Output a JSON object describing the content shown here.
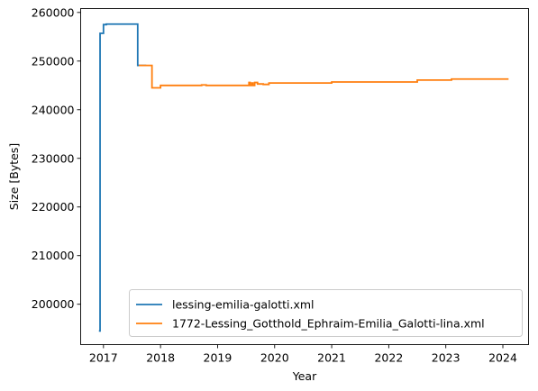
{
  "chart_data": {
    "type": "line",
    "title": "",
    "xlabel": "Year",
    "ylabel": "Size [Bytes]",
    "xlim": [
      2016.6,
      2024.45
    ],
    "ylim": [
      191700,
      260800
    ],
    "x_ticks": [
      2017,
      2018,
      2019,
      2020,
      2021,
      2022,
      2023,
      2024
    ],
    "y_ticks": [
      200000,
      210000,
      220000,
      230000,
      240000,
      250000,
      260000
    ],
    "grid": false,
    "legend_position": "lower-right",
    "series": [
      {
        "name": "lessing-emilia-galotti.xml",
        "color": "#1f77b4",
        "step": true,
        "x": [
          2016.92,
          2016.94,
          2016.96,
          2017.0,
          2017.05,
          2017.54,
          2017.6,
          2017.75
        ],
        "y": [
          194500,
          255700,
          255700,
          257500,
          257600,
          257600,
          249100,
          249100
        ]
      },
      {
        "name": "1772-Lessing_Gotthold_Ephraim-Emilia_Galotti-lina.xml",
        "color": "#ff7f0e",
        "step": true,
        "x": [
          2017.62,
          2017.85,
          2017.95,
          2018.0,
          2018.72,
          2018.8,
          2019.55,
          2019.57,
          2019.6,
          2019.62,
          2019.65,
          2019.7,
          2019.8,
          2019.9,
          2020.0,
          2021.0,
          2021.05,
          2022.0,
          2022.5,
          2022.55,
          2023.1,
          2023.2,
          2024.0,
          2024.1
        ],
        "y": [
          249100,
          244500,
          244500,
          245000,
          245100,
          245000,
          245600,
          245000,
          245500,
          245000,
          245600,
          245300,
          245200,
          245500,
          245500,
          245700,
          245700,
          245700,
          246100,
          246100,
          246300,
          246300,
          246300,
          246300
        ]
      }
    ]
  }
}
